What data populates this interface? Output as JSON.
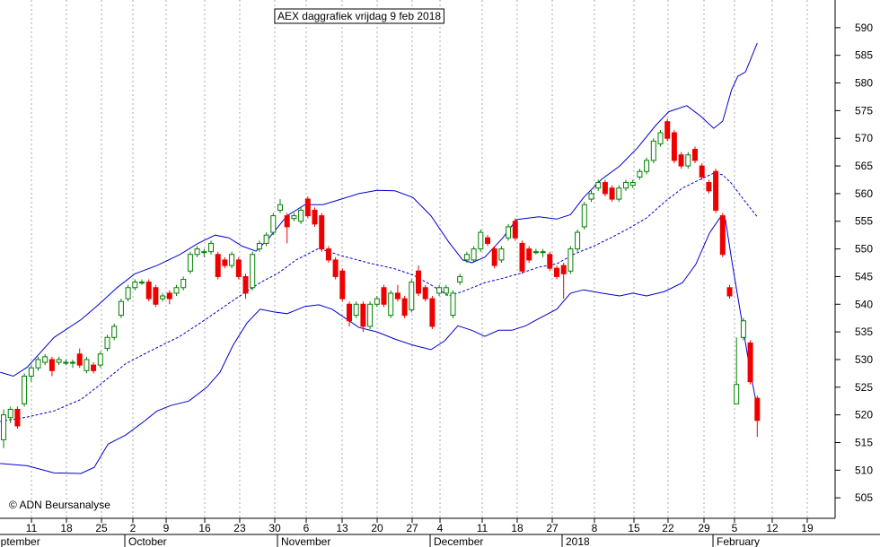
{
  "chart_data": {
    "type": "candlestick",
    "title": "AEX daggrafiek vrijdag 9 feb 2018",
    "annotation": "© ADN Beursanalyse",
    "up_color": "#008000",
    "down_color": "#ee0000",
    "grid": true,
    "x": [
      0,
      1,
      2,
      3,
      4,
      5,
      6,
      7,
      8,
      9,
      10,
      11,
      12,
      13,
      14,
      15,
      16,
      17,
      18,
      19,
      20,
      21,
      22,
      23,
      24,
      25,
      26,
      27,
      28,
      29,
      30,
      31,
      32,
      33,
      34,
      35,
      36,
      37,
      38,
      39,
      40,
      41,
      42,
      43,
      44,
      45,
      46,
      47,
      48,
      49,
      50,
      51,
      52,
      53,
      54,
      55,
      56,
      57,
      58,
      59,
      60,
      61,
      62,
      63,
      64,
      65,
      66,
      67,
      68,
      69,
      70,
      71,
      72,
      73,
      74,
      75,
      76,
      77,
      78,
      79,
      80,
      81,
      82,
      83,
      84,
      85,
      86,
      87,
      88,
      89,
      90,
      91,
      92,
      93,
      94,
      95,
      96,
      97,
      98,
      99,
      100,
      101,
      102,
      103,
      104,
      105,
      106,
      107,
      108,
      109
    ],
    "open": [
      515.5,
      519.5,
      521,
      522,
      527,
      528.5,
      529.5,
      530,
      529.5,
      529.5,
      529.5,
      531,
      528,
      529,
      529,
      532,
      534,
      538,
      541,
      543,
      544,
      544,
      543,
      541,
      542,
      542,
      543,
      546,
      549,
      549.5,
      549.5,
      549,
      548,
      547,
      548,
      545,
      543,
      550,
      551,
      553,
      557,
      556,
      555.5,
      555,
      559,
      557,
      556,
      550,
      548,
      546,
      540,
      538,
      540,
      536,
      540,
      543,
      538,
      542,
      541,
      539,
      546,
      543,
      541,
      542,
      542,
      538,
      544,
      548,
      548,
      550,
      552,
      550,
      548,
      552,
      555,
      551,
      550,
      549.5,
      549.5,
      549,
      546.5,
      547,
      546,
      550,
      554,
      559,
      561,
      562,
      561,
      559,
      561,
      561.5,
      563,
      564,
      566,
      569,
      573,
      571,
      567,
      565,
      568,
      565,
      562,
      564,
      556,
      543,
      522,
      534,
      533,
      523
    ],
    "high": [
      521,
      521.5,
      521.5,
      527.5,
      529,
      530.5,
      531,
      530.5,
      530.5,
      530,
      530,
      532,
      530.5,
      529.5,
      531.5,
      534.5,
      536.5,
      541,
      543.5,
      544.5,
      544.5,
      544.5,
      543.5,
      542,
      542.5,
      543.5,
      545,
      549.5,
      550.5,
      550,
      551.5,
      549.5,
      548.5,
      549.5,
      548.5,
      545.5,
      549.5,
      551.5,
      553,
      556.5,
      559,
      556.5,
      556.5,
      557.5,
      559.5,
      557.5,
      556.5,
      550.5,
      548.5,
      546.5,
      540.5,
      540.5,
      540.5,
      540.5,
      541.5,
      543.5,
      542.5,
      543.5,
      541.5,
      544.5,
      547,
      543.5,
      541.5,
      543.5,
      543.5,
      542.5,
      545.5,
      549.5,
      550.5,
      553.5,
      552.5,
      550.5,
      550.5,
      554.5,
      555.5,
      551.5,
      550.5,
      550,
      550,
      549.5,
      547,
      547.5,
      550.5,
      553.5,
      558.5,
      560.5,
      562.5,
      562.5,
      561.5,
      561.5,
      562.5,
      562.5,
      564.5,
      566.5,
      570,
      571.5,
      573.5,
      571.5,
      567.5,
      567.5,
      568.5,
      565.5,
      562.5,
      564.5,
      556.5,
      543.5,
      534,
      537.5,
      533.5,
      523.5
    ],
    "low": [
      514,
      518.5,
      517.5,
      521.5,
      526,
      528,
      529,
      527,
      529,
      529,
      528.5,
      528.5,
      527.5,
      527.5,
      528.5,
      531.5,
      533.5,
      537.5,
      540.5,
      542.5,
      543.5,
      540.5,
      539.5,
      540.5,
      540,
      541.5,
      542.5,
      545.5,
      548.5,
      548.5,
      549,
      544.5,
      546.5,
      546.5,
      544.5,
      541,
      542.5,
      549.5,
      550.5,
      552.5,
      556.5,
      551,
      555,
      554.5,
      555.5,
      554,
      549.5,
      547.5,
      544.5,
      540.5,
      536,
      537.5,
      535,
      535.5,
      539.5,
      539.5,
      537.5,
      540.5,
      537.5,
      538.5,
      541.5,
      540.5,
      535.5,
      541.5,
      541.5,
      537.5,
      543.5,
      547.5,
      547.5,
      549.5,
      550.5,
      546.5,
      547.5,
      551.5,
      551.5,
      545.5,
      547.5,
      549,
      548.5,
      546,
      544.5,
      541,
      545.5,
      549.5,
      553.5,
      558.5,
      560.5,
      559.5,
      558.5,
      558.5,
      560.5,
      561,
      562.5,
      563.5,
      565.5,
      568.5,
      569.5,
      565.5,
      564.5,
      564.5,
      565.5,
      562.5,
      560,
      556.5,
      548.5,
      541,
      522,
      533.5,
      525.5,
      516
    ],
    "close": [
      520,
      521,
      518,
      527,
      528.5,
      530,
      530.5,
      528,
      530,
      529.5,
      529.5,
      529,
      530,
      528,
      531,
      534,
      536,
      540.5,
      543,
      544,
      544,
      541,
      540,
      541.5,
      541,
      543,
      544.5,
      549,
      550,
      549.5,
      551,
      545,
      547,
      549,
      545,
      542,
      549,
      551,
      552.5,
      556,
      558,
      554,
      556,
      557,
      556,
      554.5,
      550,
      548,
      545,
      541,
      537,
      540,
      536,
      540,
      541,
      540,
      542,
      541,
      538,
      544,
      542,
      541,
      536,
      543,
      543,
      542,
      545,
      549,
      550,
      553,
      551,
      547,
      550,
      554,
      552,
      546,
      548,
      549.5,
      549.5,
      546.5,
      545,
      545.5,
      550,
      553,
      558,
      560,
      562,
      560,
      559,
      561,
      562,
      562,
      564,
      566,
      569.5,
      571,
      570,
      566,
      565,
      567,
      566,
      563,
      560.5,
      557,
      549,
      541.5,
      525.5,
      537,
      526,
      519
    ],
    "bands": [
      {
        "color": "#0000cc",
        "dashed": false,
        "x": [
          -0.5,
          1.4,
          3.4,
          7.3,
          11.2,
          13.8,
          16.4,
          19,
          22.2,
          25.5,
          28.1,
          30.6,
          32.6,
          34.5,
          36.5,
          38.4,
          41,
          43.6,
          46.2,
          48.8,
          51.4,
          54,
          56.6,
          59.2,
          61.8,
          64.4,
          66.4,
          67.7,
          69.6,
          72.2,
          74.2,
          77.4,
          80,
          82,
          83.9,
          86.5,
          89.1,
          91.7,
          94.3,
          96.2,
          98.8,
          100.8,
          102.7,
          104,
          105.3,
          106.2,
          107.3,
          109
        ],
        "values": [
          527.7,
          527,
          528.6,
          534,
          537.2,
          540,
          543,
          545.5,
          547,
          549,
          551,
          552.5,
          552,
          550.5,
          549.6,
          552,
          556,
          558,
          558,
          559,
          560,
          560.6,
          560.5,
          559.3,
          556,
          551.2,
          548,
          547.5,
          548.5,
          552,
          555.3,
          555.8,
          555.4,
          556.2,
          559.3,
          562.6,
          565,
          568.3,
          572.3,
          574.8,
          575.9,
          574,
          571.8,
          573.1,
          578.8,
          581.2,
          582,
          587.2
        ]
      },
      {
        "color": "#0000cc",
        "dashed": true,
        "x": [
          -0.5,
          3.4,
          7.3,
          11.2,
          13.8,
          17.7,
          21.6,
          25.5,
          29.4,
          33.2,
          37.1,
          39.7,
          42.3,
          45.6,
          48.8,
          52.7,
          56.6,
          59.2,
          61.8,
          64.4,
          66.4,
          69.6,
          72.2,
          74.8,
          77.4,
          80,
          82.6,
          85.2,
          87.8,
          90.4,
          93,
          95.6,
          98.2,
          100.8,
          102.7,
          104,
          105.3,
          107.3,
          109
        ],
        "values": [
          518.8,
          519.6,
          520.7,
          522.8,
          525.3,
          529.3,
          531.8,
          534.2,
          537.4,
          540.7,
          543.9,
          545.6,
          548,
          550.1,
          548.8,
          547.5,
          546.4,
          545.3,
          543.5,
          541.5,
          542.3,
          543.9,
          544.7,
          545.6,
          546.7,
          547.3,
          549.1,
          550.4,
          552,
          553.7,
          555.6,
          558.5,
          561,
          562.6,
          563.7,
          563.4,
          561.8,
          558.5,
          555.8
        ]
      },
      {
        "color": "#0000cc",
        "dashed": false,
        "x": [
          -0.5,
          3.4,
          7.3,
          11.2,
          13.1,
          15.1,
          17.7,
          20.3,
          22.2,
          24.2,
          26.8,
          29.4,
          31.3,
          33.2,
          35.2,
          37.1,
          39.1,
          41,
          43.6,
          45.6,
          47.5,
          49.5,
          51.4,
          54,
          56.6,
          59.2,
          61.8,
          63.8,
          65.7,
          67.7,
          69.6,
          71.6,
          73.5,
          75.5,
          77.4,
          80,
          82,
          83.9,
          86.5,
          89.1,
          91,
          93,
          95.6,
          98.2,
          100.1,
          102.1,
          103.6,
          104.4,
          105.3,
          106.6,
          107.9,
          109
        ],
        "values": [
          511.2,
          510.8,
          509.5,
          509.4,
          510.5,
          514.7,
          516.4,
          518.8,
          520.7,
          521.7,
          522.5,
          525,
          527.7,
          532.6,
          536.6,
          539.1,
          538.6,
          538.3,
          539.6,
          539.9,
          539.1,
          537.4,
          535.8,
          535,
          533.7,
          532.6,
          531.8,
          533.4,
          536.1,
          535.3,
          534.2,
          535.3,
          535.3,
          536.1,
          537.4,
          539.1,
          542,
          542.6,
          542,
          541.5,
          542,
          541.5,
          542.3,
          543.9,
          547.2,
          552.9,
          555.6,
          555.3,
          548,
          538.3,
          528.5,
          521.2
        ]
      }
    ],
    "xlim": [
      -0.52,
      120.26
    ],
    "ylim": [
      501.3,
      595
    ],
    "yticks": [
      505,
      510,
      515,
      520,
      525,
      530,
      535,
      540,
      545,
      550,
      555,
      560,
      565,
      570,
      575,
      580,
      585,
      590
    ],
    "xticks": [
      {
        "value": 4.03,
        "label": "11"
      },
      {
        "value": 9.09,
        "label": "18"
      },
      {
        "value": 14.16,
        "label": "25"
      },
      {
        "value": 18.7,
        "label": "2"
      },
      {
        "value": 23.51,
        "label": "9"
      },
      {
        "value": 29.09,
        "label": "16"
      },
      {
        "value": 34.15,
        "label": "23"
      },
      {
        "value": 39.22,
        "label": "30"
      },
      {
        "value": 43.77,
        "label": "6"
      },
      {
        "value": 48.96,
        "label": "13"
      },
      {
        "value": 54.03,
        "label": "20"
      },
      {
        "value": 59.09,
        "label": "27"
      },
      {
        "value": 63.12,
        "label": "4"
      },
      {
        "value": 69.22,
        "label": "11"
      },
      {
        "value": 74.28,
        "label": "18"
      },
      {
        "value": 79.35,
        "label": "27"
      },
      {
        "value": 85.45,
        "label": "8"
      },
      {
        "value": 91.17,
        "label": "15"
      },
      {
        "value": 96.1,
        "label": "22"
      },
      {
        "value": 101.3,
        "label": "29"
      },
      {
        "value": 105.71,
        "label": "5"
      },
      {
        "value": 111.17,
        "label": "12"
      },
      {
        "value": 116.23,
        "label": "19"
      }
    ],
    "month_ticks": [
      {
        "value": -2.34,
        "label": "September"
      },
      {
        "value": 18.05,
        "label": "October"
      },
      {
        "value": 40.13,
        "label": "November"
      },
      {
        "value": 62.21,
        "label": "December"
      },
      {
        "value": 81.3,
        "label": "2018"
      },
      {
        "value": 103.12,
        "label": "February"
      }
    ]
  }
}
